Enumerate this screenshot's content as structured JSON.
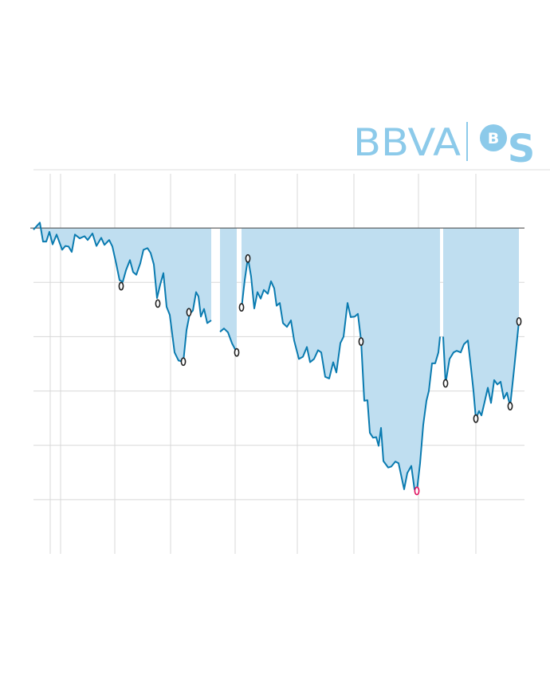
{
  "header": {
    "brand": "BBVA",
    "mark": "B",
    "suffix": "S"
  },
  "chart_data": {
    "type": "area",
    "x": [
      0,
      8,
      12,
      16,
      20,
      24,
      29,
      36,
      40,
      44,
      48,
      52,
      58,
      64,
      68,
      74,
      79,
      85,
      89,
      95,
      99,
      104,
      108,
      112,
      116,
      121,
      125,
      129,
      134,
      138,
      143,
      147,
      151,
      155,
      159,
      163,
      167,
      171,
      177,
      182,
      188,
      192,
      196,
      200,
      204,
      207,
      210,
      214,
      218,
      223,
      230,
      234,
      239,
      244,
      249,
      255,
      258,
      261,
      265,
      269,
      273,
      277,
      281,
      285,
      289,
      294,
      298,
      302,
      305,
      309,
      313,
      318,
      323,
      327,
      333,
      338,
      343,
      347,
      352,
      357,
      361,
      366,
      371,
      376,
      380,
      385,
      389,
      394,
      398,
      403,
      407,
      411,
      415,
      419,
      422,
      426,
      430,
      433,
      436,
      439,
      445,
      449,
      454,
      458,
      465,
      469,
      474,
      478,
      481,
      485,
      489,
      493,
      496,
      500,
      504,
      508,
      510,
      512,
      514,
      517,
      522,
      527,
      531,
      536,
      540,
      545,
      549,
      552,
      555,
      559,
      562,
      566,
      570,
      574,
      578,
      582,
      586,
      590,
      594,
      598,
      603,
      609
    ],
    "series": [
      {
        "name": null,
        "color": "#0a7bb0",
        "fill": "#bfdef0",
        "values": [
          -0.3,
          1.0,
          -2.5,
          -2.5,
          -0.7,
          -3.0,
          -1.2,
          -4.0,
          -3.3,
          -3.4,
          -4.4,
          -1.2,
          -1.9,
          -1.5,
          -2.2,
          -1.0,
          -3.3,
          -1.8,
          -3.1,
          -2.2,
          -3.4,
          -6.7,
          -9.6,
          -9.9,
          -7.8,
          -5.9,
          -8.1,
          -8.6,
          -6.5,
          -4.0,
          -3.7,
          -4.6,
          -6.7,
          -12.9,
          -10.4,
          -8.3,
          -14.5,
          -16.0,
          -22.9,
          -24.4,
          -24.6,
          -18.8,
          -15.8,
          -15.2,
          -11.8,
          -12.6,
          -16.3,
          -14.9,
          -17.5,
          -17.0,
          null,
          -19.1,
          -18.5,
          -19.2,
          -21.2,
          -22.9,
          null,
          -14.8,
          -9.6,
          -5.5,
          -8.9,
          -14.8,
          -11.8,
          -13.0,
          -11.4,
          -12.1,
          -9.8,
          -11.1,
          -14.3,
          -13.8,
          -17.5,
          -18.2,
          -17.0,
          -20.7,
          -24.1,
          -23.7,
          -21.9,
          -24.7,
          -24.1,
          -22.5,
          -22.9,
          -27.4,
          -27.7,
          -24.7,
          -26.6,
          -21.2,
          -20.0,
          -13.8,
          -16.4,
          -16.3,
          -15.8,
          -20.7,
          -31.8,
          -31.7,
          -37.7,
          -38.6,
          -38.5,
          -40.1,
          -36.8,
          -42.9,
          -44.1,
          -43.9,
          -43.0,
          -43.3,
          -48.1,
          -45.1,
          -43.8,
          -48.1,
          -48.4,
          -43.3,
          -36.2,
          -31.8,
          -30.0,
          -24.9,
          -24.9,
          -22.9,
          -20.0,
          null,
          -20.0,
          -28.6,
          -24.1,
          -22.9,
          -22.6,
          -22.9,
          -21.4,
          -20.7,
          -25.9,
          -30.0,
          -35.1,
          -33.7,
          -34.5,
          -32.0,
          -29.4,
          -32.2,
          -28.0,
          -28.8,
          -28.3,
          -31.4,
          -30.3,
          -32.8,
          -25.9,
          -17.2
        ]
      }
    ],
    "markers": {
      "color": "#222222",
      "x": [
        110,
        156,
        188,
        195,
        255,
        261,
        269,
        411,
        517,
        555,
        598,
        609
      ],
      "values": [
        -10.7,
        -13.9,
        -24.6,
        -15.5,
        -22.9,
        -14.6,
        -5.6,
        -20.9,
        -28.6,
        -35.1,
        -32.8,
        -17.2
      ]
    },
    "highlight": {
      "color": "#e0115f",
      "x": [
        481
      ],
      "values": [
        -48.4
      ]
    },
    "xlim": [
      0,
      616
    ],
    "ylim": [
      -60,
      10
    ],
    "xticks": [
      21,
      34,
      102,
      172,
      253,
      331,
      402,
      483,
      555
    ],
    "yticks": [
      0,
      -10,
      -20,
      -30,
      -40,
      -50
    ],
    "grid": true
  }
}
